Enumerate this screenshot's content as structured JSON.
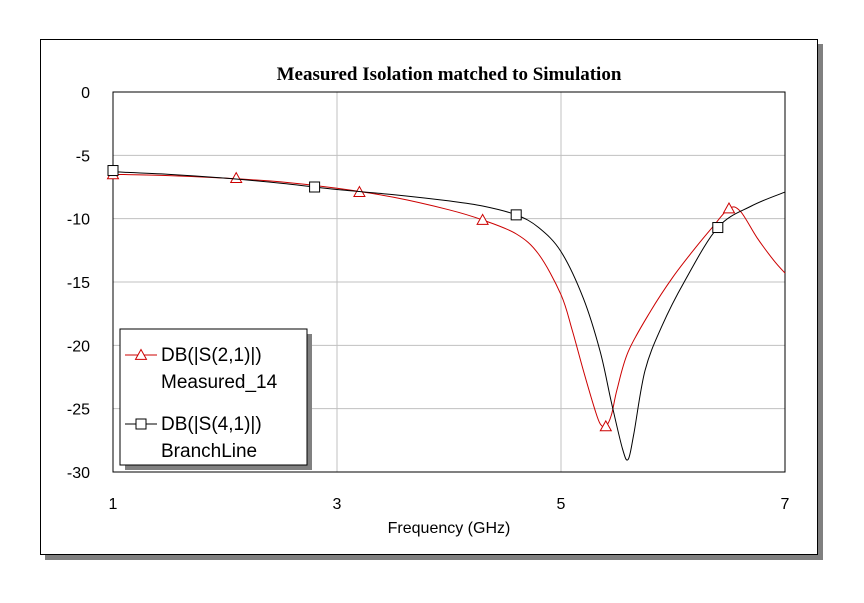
{
  "chart_data": {
    "type": "line",
    "title": "Measured Isolation matched to Simulation",
    "xlabel": "Frequency (GHz)",
    "ylabel": "",
    "xlim": [
      1,
      7
    ],
    "ylim": [
      -30,
      0
    ],
    "xticks": [
      1,
      3,
      5,
      7
    ],
    "yticks": [
      0,
      -5,
      -10,
      -15,
      -20,
      -25,
      -30
    ],
    "grid": true,
    "legend_position": "bottom-left",
    "series": [
      {
        "name": "DB(|S(2,1)|)",
        "name2": "Measured_14",
        "color": "#cc0000",
        "marker": "triangle",
        "x": [
          1.0,
          1.5,
          2.0,
          2.5,
          3.0,
          3.5,
          4.0,
          4.3,
          4.6,
          4.8,
          5.0,
          5.1,
          5.2,
          5.3,
          5.35,
          5.4,
          5.45,
          5.5,
          5.6,
          5.8,
          6.0,
          6.2,
          6.35,
          6.5,
          6.6,
          6.75,
          6.9,
          7.0
        ],
        "y": [
          -6.5,
          -6.6,
          -6.8,
          -7.1,
          -7.6,
          -8.3,
          -9.3,
          -10.1,
          -11.2,
          -12.8,
          -16.0,
          -18.8,
          -22.0,
          -25.0,
          -26.2,
          -26.4,
          -25.5,
          -23.5,
          -20.5,
          -17.3,
          -14.6,
          -12.3,
          -10.7,
          -9.2,
          -9.4,
          -11.5,
          -13.3,
          -14.3
        ],
        "markers_x": [
          1.0,
          2.1,
          3.2,
          4.3,
          5.4,
          6.5
        ],
        "markers_y": [
          -6.5,
          -6.8,
          -7.9,
          -10.1,
          -26.4,
          -9.2
        ]
      },
      {
        "name": "DB(|S(4,1)|)",
        "name2": "BranchLine",
        "color": "#000000",
        "marker": "square",
        "x": [
          1.0,
          1.5,
          2.0,
          2.5,
          3.0,
          3.5,
          4.0,
          4.3,
          4.6,
          4.8,
          5.0,
          5.2,
          5.35,
          5.45,
          5.55,
          5.6,
          5.65,
          5.75,
          5.9,
          6.1,
          6.4,
          6.7,
          7.0
        ],
        "y": [
          -6.3,
          -6.5,
          -6.8,
          -7.2,
          -7.7,
          -8.1,
          -8.6,
          -9.0,
          -9.7,
          -10.7,
          -12.6,
          -16.3,
          -20.5,
          -24.5,
          -28.2,
          -29.0,
          -27.0,
          -22.0,
          -18.5,
          -15.0,
          -10.7,
          -9.0,
          -7.9
        ],
        "markers_x": [
          1.0,
          2.8,
          4.6,
          6.4
        ],
        "markers_y": [
          -6.2,
          -7.5,
          -9.7,
          -10.7
        ]
      }
    ]
  }
}
